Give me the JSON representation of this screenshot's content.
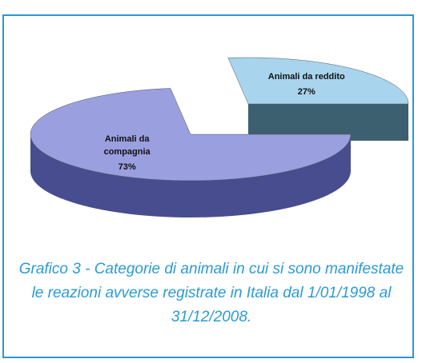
{
  "chart_data": {
    "type": "pie",
    "caption": "Grafico 3 - Categorie di animali in cui si sono manifestate le reazioni avverse registrate in Italia dal 1/01/1998 al 31/12/2008.",
    "categories": [
      "Animali da reddito",
      "Animali da compagnia"
    ],
    "values": [
      27,
      73
    ],
    "value_labels": [
      "27%",
      "73%"
    ],
    "colors": [
      "#a8d4ee",
      "#9a9fe0"
    ],
    "side_colors": [
      "#3d6070",
      "#474d8e"
    ],
    "exploded": [
      true,
      false
    ]
  }
}
